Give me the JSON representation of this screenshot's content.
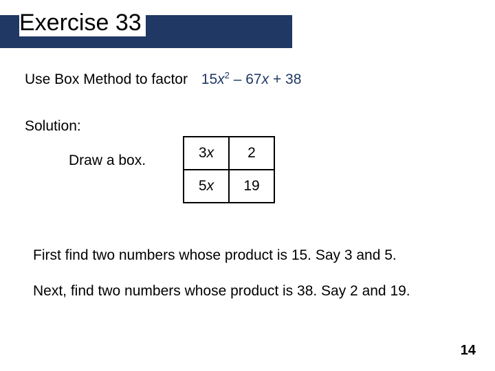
{
  "title": "Exercise 33",
  "band_color": "#1f3864",
  "problem_prompt": "Use Box Method to factor",
  "expression_html": "15<span class=\"ital\">x</span><sup>2</sup> – 67<span class=\"ital\">x</span> + 38",
  "solution_label": "Solution:",
  "draw_label": "Draw a box.",
  "box": {
    "rows": [
      [
        "3x",
        "2"
      ],
      [
        "5x",
        "19"
      ]
    ]
  },
  "step1": "First find two numbers whose product is 15. Say 3 and 5.",
  "step2": "Next, find two numbers whose product is 38. Say 2 and 19.",
  "page_number": "14"
}
